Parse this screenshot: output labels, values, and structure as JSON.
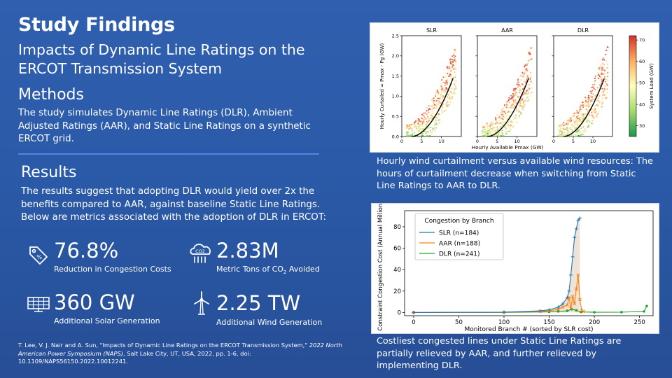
{
  "header": {
    "title": "Study Findings",
    "subtitle": "Impacts of Dynamic Line Ratings on the ERCOT Transmission System"
  },
  "methods": {
    "heading": "Methods",
    "body": "The study simulates Dynamic Line Ratings (DLR), Ambient Adjusted Ratings (AAR), and Static Line Ratings on a synthetic ERCOT grid."
  },
  "results": {
    "heading": "Results",
    "body": "The results suggest that adopting DLR would yield over 2x the benefits compared to AAR, against baseline Static Line Ratings. Below are metrics associated with the adoption of DLR in ERCOT:"
  },
  "metrics": [
    {
      "icon": "price-tag-icon",
      "value": "76.8%",
      "label": "Reduction in Congestion Costs"
    },
    {
      "icon": "co2-cloud-icon",
      "value": "2.83M",
      "label_prefix": "Metric Tons of CO",
      "label_sub": "2",
      "label_suffix": " Avoided"
    },
    {
      "icon": "solar-panel-icon",
      "value": "360 GW",
      "label": "Additional Solar Generation"
    },
    {
      "icon": "wind-turbine-icon",
      "value": "2.25 TW",
      "label": "Additional Wind Generation"
    }
  ],
  "citation": {
    "part1": "T. Lee, V. J. Nair and A. Sun, \"Impacts of Dynamic Line Ratings on the ERCOT Transmission System,\" ",
    "venue": "2022 North American Power Symposium (NAPS)",
    "part2": ", Salt Lake City, UT, USA, 2022, pp. 1-6, doi: 10.1109/NAPS56150.2022.10012241."
  },
  "figure1": {
    "caption": "Hourly wind curtailment versus available wind resources: The hours of curtailment decrease when switching from Static Line Ratings to AAR to DLR."
  },
  "figure2": {
    "caption": "Costliest congested lines under Static Line Ratings are partially relieved by AAR, and further relieved by implementing DLR."
  },
  "chart_data": [
    {
      "type": "scatter",
      "panels": [
        "SLR",
        "AAR",
        "DLR"
      ],
      "xlabel": "Hourly Available Pmax (GW)",
      "ylabel": "Hourly Curtailed = Pmax - Pg (GW)",
      "xticks": [
        "0",
        "5",
        "10"
      ],
      "yticks": [
        "0.0",
        "0.5",
        "1.0",
        "1.5",
        "2.0",
        "2.5"
      ],
      "xlim": [
        0,
        15
      ],
      "ylim": [
        0,
        2.5
      ],
      "colorbar": {
        "label": "System Load (GW)",
        "ticks": [
          "70",
          "60",
          "50",
          "40",
          "30"
        ],
        "range": [
          25,
          72
        ],
        "colors": [
          "#1a9850",
          "#a6d96a",
          "#ffffbf",
          "#fdae61",
          "#d73027"
        ]
      },
      "fit_curve": {
        "a": 0.018,
        "b": 1.85,
        "x_range": [
          2.5,
          12.9
        ]
      }
    },
    {
      "type": "line",
      "title": "Congestion by Branch",
      "xlabel": "Monitored Branch # (sorted by SLR cost)",
      "ylabel": "Constraint Congestion Cost (Annual Million $)",
      "xlim": [
        -10,
        265
      ],
      "ylim": [
        -3,
        95
      ],
      "xticks": [
        0,
        50,
        100,
        150,
        200,
        250
      ],
      "yticks": [
        0,
        20,
        40,
        60,
        80
      ],
      "legend_position": "top-left",
      "series": [
        {
          "name": "SLR (n=184)",
          "color": "#1f77b4",
          "x": [
            0,
            100,
            140,
            150,
            160,
            165,
            170,
            172,
            174,
            176,
            178,
            180,
            182,
            184
          ],
          "y": [
            0,
            0.3,
            1.5,
            2.5,
            5,
            8,
            14,
            20,
            35,
            52,
            70,
            78,
            86,
            88
          ]
        },
        {
          "name": "AAR (n=188)",
          "color": "#ff7f0e",
          "x": [
            0,
            100,
            140,
            150,
            160,
            165,
            170,
            172,
            174,
            176,
            178,
            180,
            182,
            184,
            186,
            188
          ],
          "y": [
            0,
            0.2,
            1,
            1.5,
            3,
            5,
            7,
            14,
            4,
            15,
            8,
            22,
            35,
            12,
            2,
            1
          ]
        },
        {
          "name": "DLR (n=241)",
          "color": "#2ca02c",
          "x": [
            0,
            100,
            150,
            160,
            170,
            175,
            180,
            185,
            200,
            230,
            255,
            258
          ],
          "y": [
            0,
            0.1,
            0.5,
            1,
            1.5,
            3,
            2,
            0.5,
            0.2,
            0.3,
            1,
            6
          ]
        }
      ]
    }
  ]
}
